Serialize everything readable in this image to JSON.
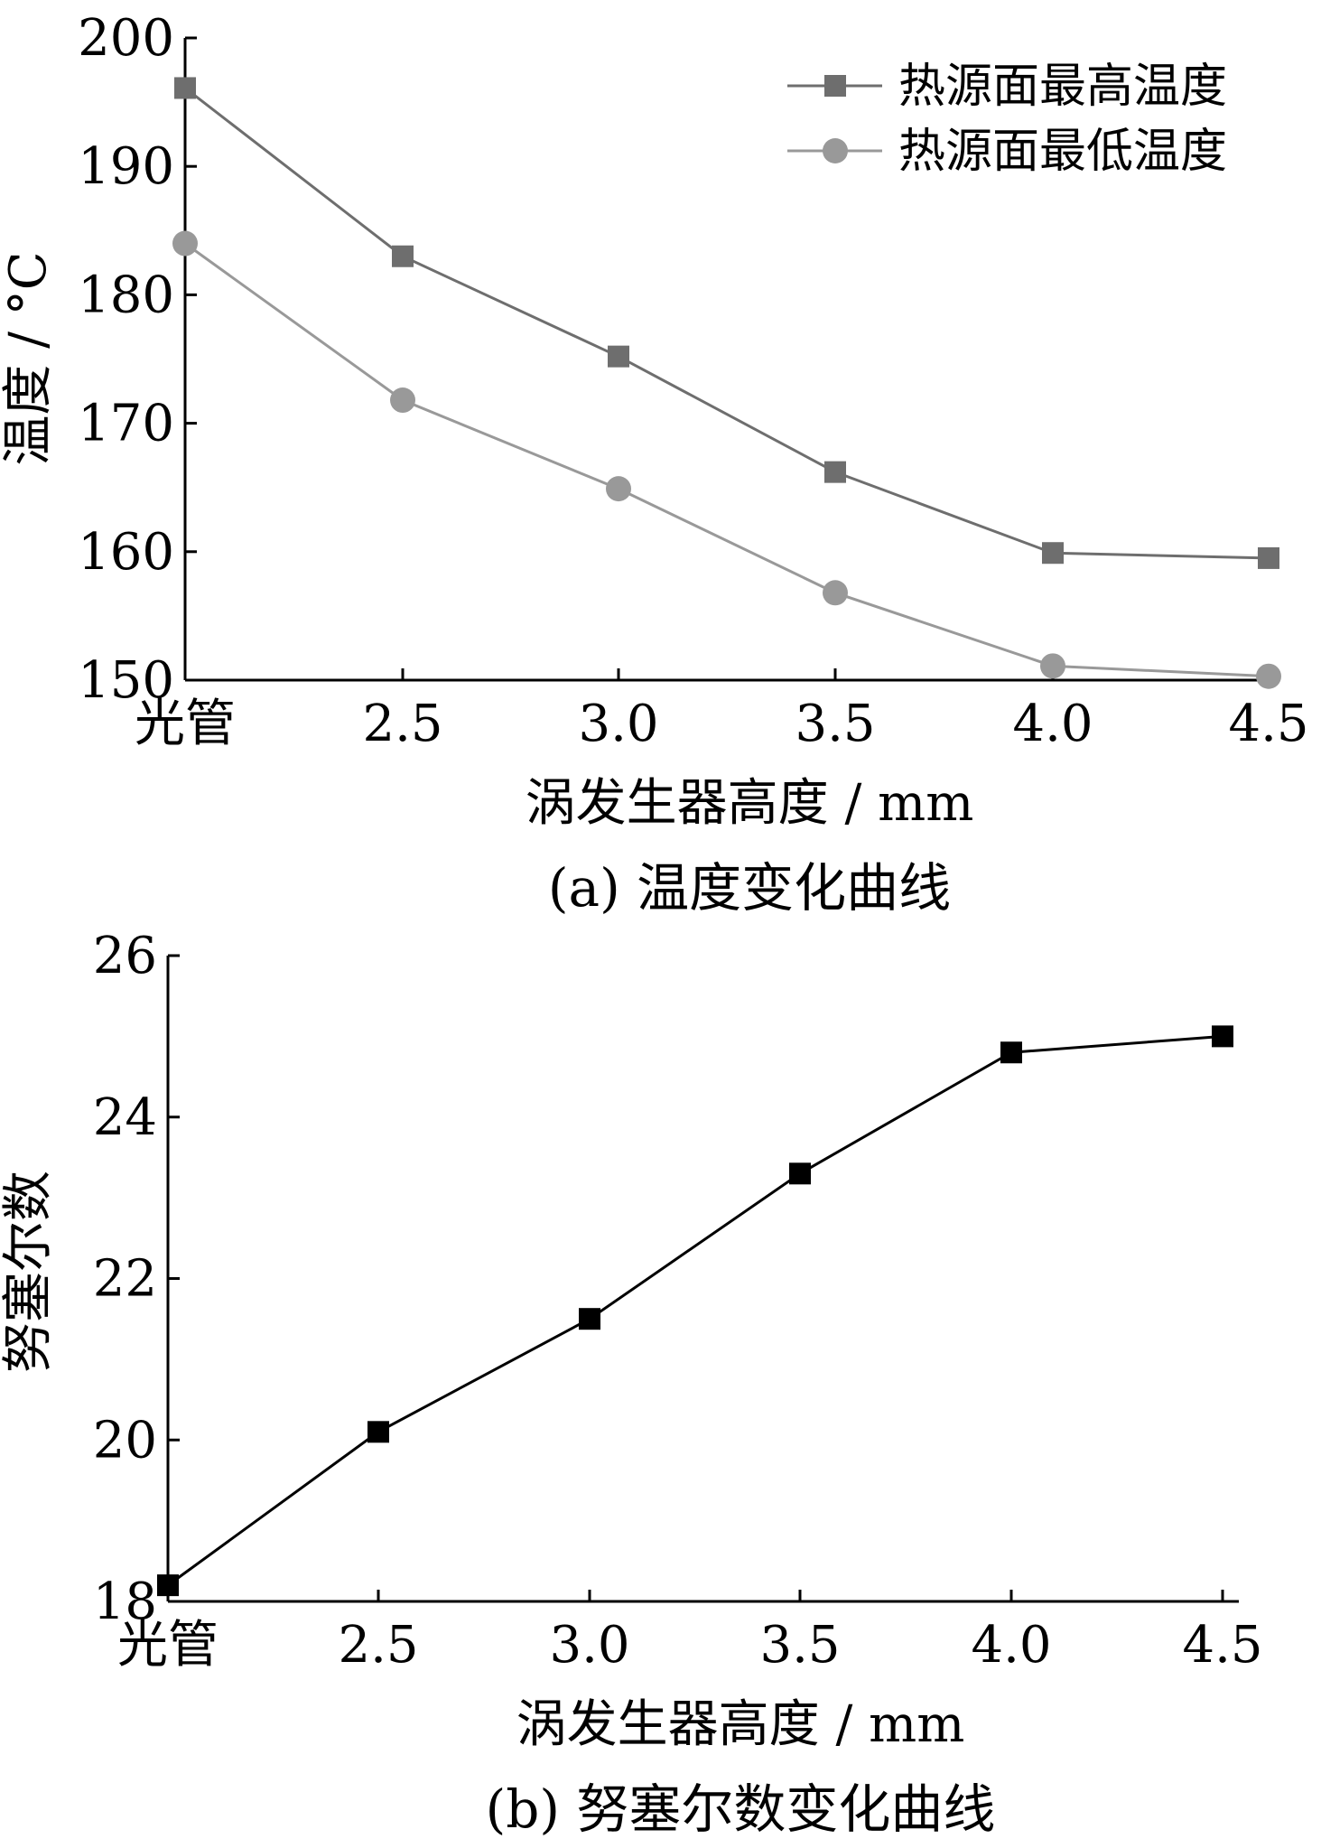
{
  "chart_data": [
    {
      "type": "line",
      "caption": "(a)  温度变化曲线",
      "xlabel": "涡发生器高度 / mm",
      "ylabel": "温度 / °C",
      "categories": [
        "光管",
        "2.5",
        "3.0",
        "3.5",
        "4.0",
        "4.5"
      ],
      "ylim": [
        150,
        200
      ],
      "yticks": [
        "150",
        "160",
        "170",
        "180",
        "190",
        "200"
      ],
      "grid": false,
      "legend_position": "top-right",
      "series": [
        {
          "name": "热源面最高温度",
          "marker": "square",
          "color": "#6e6e6e",
          "values": [
            196.1,
            183.0,
            175.2,
            166.2,
            159.9,
            159.5
          ]
        },
        {
          "name": "热源面最低温度",
          "marker": "circle",
          "color": "#999999",
          "values": [
            184.0,
            171.8,
            164.9,
            156.8,
            151.1,
            150.3
          ]
        }
      ]
    },
    {
      "type": "line",
      "caption": "(b)  努塞尔数变化曲线",
      "xlabel": "涡发生器高度 / mm",
      "ylabel": "努塞尔数",
      "categories": [
        "光管",
        "2.5",
        "3.0",
        "3.5",
        "4.0",
        "4.5"
      ],
      "ylim": [
        18,
        26
      ],
      "yticks": [
        "18",
        "20",
        "22",
        "24",
        "26"
      ],
      "grid": false,
      "series": [
        {
          "marker": "square",
          "color": "#000000",
          "values": [
            18.2,
            20.1,
            21.5,
            23.3,
            24.8,
            25.0
          ]
        }
      ]
    }
  ]
}
